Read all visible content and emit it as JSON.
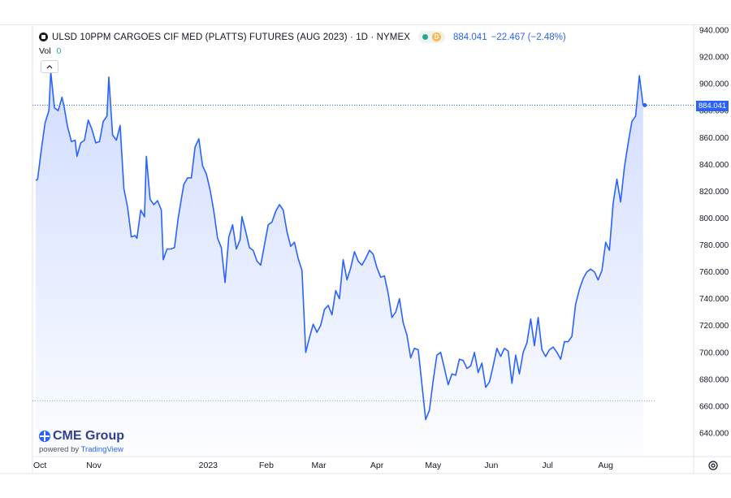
{
  "legend": {
    "title": "ULSD 10PPM CARGOES CIF MED (PLATTS) FUTURES (AUG 2023) · 1D · NYMEX",
    "status_badge": "D",
    "last_price": "884.041",
    "change": "−22.467 (−2.48%)"
  },
  "volume": {
    "label": "Vol",
    "value": "0"
  },
  "brand": {
    "name": "CME Group",
    "powered_prefix": "powered by",
    "powered_name": "TradingView"
  },
  "price_tag": "884.041",
  "colors": {
    "line": "#2962ff",
    "accent": "#2962ff",
    "fill_top": "#c9d6ff"
  },
  "chart_data": {
    "type": "area",
    "title": "ULSD 10PPM CARGOES CIF MED (PLATTS) FUTURES (AUG 2023) · 1D · NYMEX",
    "ylim": [
      630,
      945
    ],
    "y_ticks": [
      "940.000",
      "920.000",
      "900.000",
      "880.000",
      "860.000",
      "840.000",
      "820.000",
      "800.000",
      "780.000",
      "760.000",
      "740.000",
      "720.000",
      "700.000",
      "680.000",
      "660.000",
      "640.000"
    ],
    "x_ticks": [
      "Oct",
      "Nov",
      "2023",
      "Feb",
      "Mar",
      "Apr",
      "May",
      "Jun",
      "Jul",
      "Aug"
    ],
    "x_tick_dates": [
      "2022-10-01",
      "2022-11-01",
      "2023-01-01",
      "2023-02-01",
      "2023-03-01",
      "2023-04-01",
      "2023-05-01",
      "2023-06-01",
      "2023-07-01",
      "2023-08-01"
    ],
    "x_range": [
      "2022-10-01",
      "2023-08-28"
    ],
    "last_value": 884.041,
    "reference_line": 664,
    "grid": false,
    "series": [
      {
        "points": [
          [
            "2022-10-01",
            828
          ],
          [
            "2022-10-02",
            829
          ],
          [
            "2022-10-04",
            851
          ],
          [
            "2022-10-06",
            871
          ],
          [
            "2022-10-08",
            880
          ],
          [
            "2022-10-09",
            909
          ],
          [
            "2022-10-11",
            882
          ],
          [
            "2022-10-13",
            880
          ],
          [
            "2022-10-15",
            890
          ],
          [
            "2022-10-16",
            884
          ],
          [
            "2022-10-18",
            868
          ],
          [
            "2022-10-20",
            857
          ],
          [
            "2022-10-22",
            858
          ],
          [
            "2022-10-23",
            846
          ],
          [
            "2022-10-25",
            856
          ],
          [
            "2022-10-27",
            858
          ],
          [
            "2022-10-29",
            873
          ],
          [
            "2022-10-31",
            866
          ],
          [
            "2022-11-02",
            856
          ],
          [
            "2022-11-04",
            857
          ],
          [
            "2022-11-06",
            872
          ],
          [
            "2022-11-08",
            876
          ],
          [
            "2022-11-09",
            905
          ],
          [
            "2022-11-11",
            862
          ],
          [
            "2022-11-13",
            858
          ],
          [
            "2022-11-15",
            869
          ],
          [
            "2022-11-17",
            822
          ],
          [
            "2022-11-19",
            808
          ],
          [
            "2022-11-21",
            786
          ],
          [
            "2022-11-23",
            787
          ],
          [
            "2022-11-24",
            785
          ],
          [
            "2022-11-26",
            806
          ],
          [
            "2022-11-28",
            801
          ],
          [
            "2022-11-29",
            846
          ],
          [
            "2022-12-01",
            814
          ],
          [
            "2022-12-03",
            810
          ],
          [
            "2022-12-05",
            813
          ],
          [
            "2022-12-07",
            806
          ],
          [
            "2022-12-08",
            769
          ],
          [
            "2022-12-10",
            777
          ],
          [
            "2022-12-12",
            777
          ],
          [
            "2022-12-14",
            778
          ],
          [
            "2022-12-16",
            800
          ],
          [
            "2022-12-18",
            817
          ],
          [
            "2022-12-19",
            825
          ],
          [
            "2022-12-21",
            830
          ],
          [
            "2022-12-23",
            830
          ],
          [
            "2022-12-25",
            853
          ],
          [
            "2022-12-27",
            859
          ],
          [
            "2022-12-29",
            839
          ],
          [
            "2022-12-31",
            833
          ],
          [
            "2023-01-02",
            821
          ],
          [
            "2023-01-04",
            805
          ],
          [
            "2023-01-06",
            785
          ],
          [
            "2023-01-08",
            778
          ],
          [
            "2023-01-10",
            752
          ],
          [
            "2023-01-12",
            786
          ],
          [
            "2023-01-14",
            795
          ],
          [
            "2023-01-16",
            777
          ],
          [
            "2023-01-18",
            784
          ],
          [
            "2023-01-19",
            801
          ],
          [
            "2023-01-21",
            790
          ],
          [
            "2023-01-23",
            778
          ],
          [
            "2023-01-25",
            776
          ],
          [
            "2023-01-27",
            768
          ],
          [
            "2023-01-29",
            765
          ],
          [
            "2023-01-31",
            780
          ],
          [
            "2023-02-02",
            795
          ],
          [
            "2023-02-04",
            797
          ],
          [
            "2023-02-06",
            805
          ],
          [
            "2023-02-08",
            810
          ],
          [
            "2023-02-10",
            806
          ],
          [
            "2023-02-12",
            790
          ],
          [
            "2023-02-14",
            779
          ],
          [
            "2023-02-16",
            782
          ],
          [
            "2023-02-18",
            770
          ],
          [
            "2023-02-20",
            761
          ],
          [
            "2023-02-22",
            700
          ],
          [
            "2023-02-24",
            711
          ],
          [
            "2023-02-26",
            721
          ],
          [
            "2023-02-28",
            715
          ],
          [
            "2023-03-02",
            720
          ],
          [
            "2023-03-04",
            732
          ],
          [
            "2023-03-06",
            735
          ],
          [
            "2023-03-08",
            728
          ],
          [
            "2023-03-10",
            746
          ],
          [
            "2023-03-12",
            740
          ],
          [
            "2023-03-14",
            769
          ],
          [
            "2023-03-16",
            754
          ],
          [
            "2023-03-18",
            763
          ],
          [
            "2023-03-20",
            775
          ],
          [
            "2023-03-22",
            768
          ],
          [
            "2023-03-24",
            765
          ],
          [
            "2023-03-26",
            770
          ],
          [
            "2023-03-28",
            776
          ],
          [
            "2023-03-30",
            773
          ],
          [
            "2023-04-01",
            763
          ],
          [
            "2023-04-03",
            756
          ],
          [
            "2023-04-05",
            757
          ],
          [
            "2023-04-07",
            744
          ],
          [
            "2023-04-09",
            726
          ],
          [
            "2023-04-11",
            730
          ],
          [
            "2023-04-13",
            740
          ],
          [
            "2023-04-15",
            722
          ],
          [
            "2023-04-17",
            713
          ],
          [
            "2023-04-19",
            696
          ],
          [
            "2023-04-21",
            703
          ],
          [
            "2023-04-23",
            702
          ],
          [
            "2023-04-25",
            676
          ],
          [
            "2023-04-27",
            650
          ],
          [
            "2023-04-29",
            657
          ],
          [
            "2023-05-01",
            679
          ],
          [
            "2023-05-03",
            698
          ],
          [
            "2023-05-05",
            700
          ],
          [
            "2023-05-07",
            688
          ],
          [
            "2023-05-09",
            676
          ],
          [
            "2023-05-11",
            684
          ],
          [
            "2023-05-13",
            683
          ],
          [
            "2023-05-15",
            695
          ],
          [
            "2023-05-17",
            694
          ],
          [
            "2023-05-19",
            688
          ],
          [
            "2023-05-21",
            690
          ],
          [
            "2023-05-23",
            700
          ],
          [
            "2023-05-25",
            685
          ],
          [
            "2023-05-27",
            692
          ],
          [
            "2023-05-29",
            674
          ],
          [
            "2023-05-31",
            678
          ],
          [
            "2023-06-02",
            690
          ],
          [
            "2023-06-04",
            703
          ],
          [
            "2023-06-06",
            697
          ],
          [
            "2023-06-08",
            703
          ],
          [
            "2023-06-10",
            701
          ],
          [
            "2023-06-12",
            677
          ],
          [
            "2023-06-14",
            698
          ],
          [
            "2023-06-16",
            684
          ],
          [
            "2023-06-18",
            700
          ],
          [
            "2023-06-20",
            707
          ],
          [
            "2023-06-22",
            725
          ],
          [
            "2023-06-24",
            705
          ],
          [
            "2023-06-26",
            726
          ],
          [
            "2023-06-28",
            702
          ],
          [
            "2023-06-30",
            697
          ],
          [
            "2023-07-02",
            702
          ],
          [
            "2023-07-04",
            704
          ],
          [
            "2023-07-06",
            700
          ],
          [
            "2023-07-08",
            695
          ],
          [
            "2023-07-10",
            708
          ],
          [
            "2023-07-12",
            708
          ],
          [
            "2023-07-14",
            712
          ],
          [
            "2023-07-16",
            736
          ],
          [
            "2023-07-18",
            747
          ],
          [
            "2023-07-20",
            755
          ],
          [
            "2023-07-22",
            760
          ],
          [
            "2023-07-24",
            762
          ],
          [
            "2023-07-26",
            760
          ],
          [
            "2023-07-28",
            754
          ],
          [
            "2023-07-30",
            761
          ],
          [
            "2023-08-01",
            782
          ],
          [
            "2023-08-03",
            776
          ],
          [
            "2023-08-05",
            811
          ],
          [
            "2023-08-07",
            829
          ],
          [
            "2023-08-09",
            812
          ],
          [
            "2023-08-11",
            838
          ],
          [
            "2023-08-13",
            856
          ],
          [
            "2023-08-15",
            872
          ],
          [
            "2023-08-17",
            876
          ],
          [
            "2023-08-19",
            906
          ],
          [
            "2023-08-21",
            884
          ]
        ]
      }
    ]
  }
}
